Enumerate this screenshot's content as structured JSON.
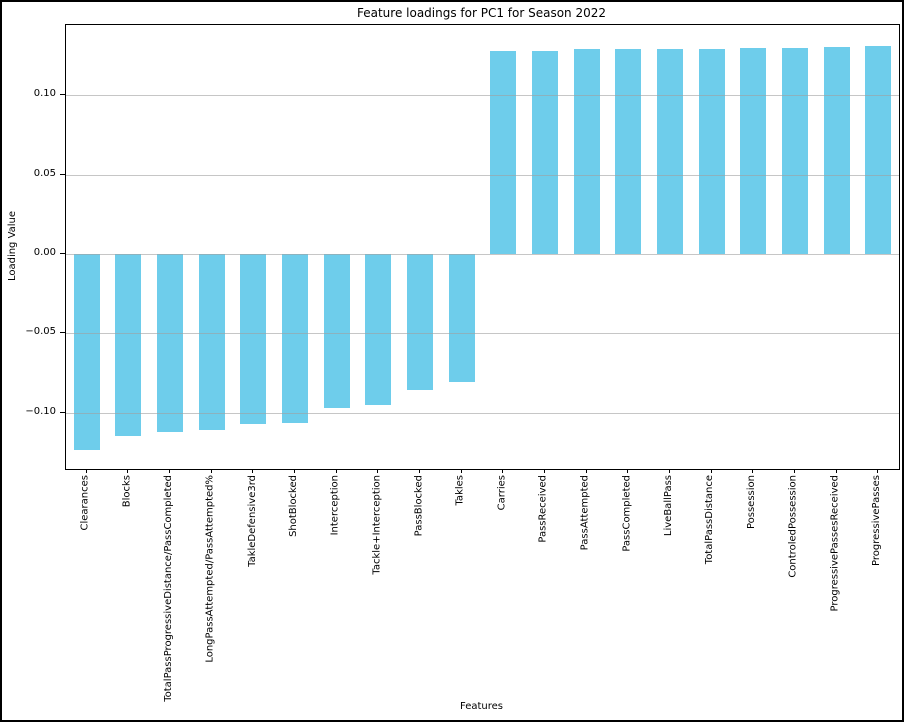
{
  "chart_data": {
    "type": "bar",
    "title": "Feature loadings for PC1 for Season 2022",
    "xlabel": "Features",
    "ylabel": "Loading Value",
    "bar_color": "#6ECDEB",
    "grid": true,
    "legend": "none",
    "ylim": [
      -0.1354,
      0.1442
    ],
    "yticks": [
      0.1,
      0.05,
      0.0,
      -0.05,
      -0.1
    ],
    "ytick_labels": [
      "0.10",
      "0.05",
      "0.00",
      "−0.05",
      "−0.10"
    ],
    "categories": [
      "Clearances",
      "Blocks",
      "TotalPassProgressiveDistance/PassCompleted",
      "LongPassAttempted/PassAttempted%",
      "TakleDefensive3rd",
      "ShotBlocked",
      "Interception",
      "Tackle+Interception",
      "PassBlocked",
      "Takles",
      "Carries",
      "PassReceived",
      "PassAttempted",
      "PassCompleted",
      "LiveBallPass",
      "TotalPassDistance",
      "Possession",
      "ControledPossession",
      "ProgressivePassesReceived",
      "ProgressivePasses"
    ],
    "values": [
      -0.1234,
      -0.1146,
      -0.1122,
      -0.1108,
      -0.1068,
      -0.1062,
      -0.097,
      -0.0954,
      -0.0854,
      -0.0806,
      0.1277,
      0.1277,
      0.129,
      0.129,
      0.1291,
      0.1292,
      0.1297,
      0.13,
      0.1306,
      0.1308
    ]
  }
}
